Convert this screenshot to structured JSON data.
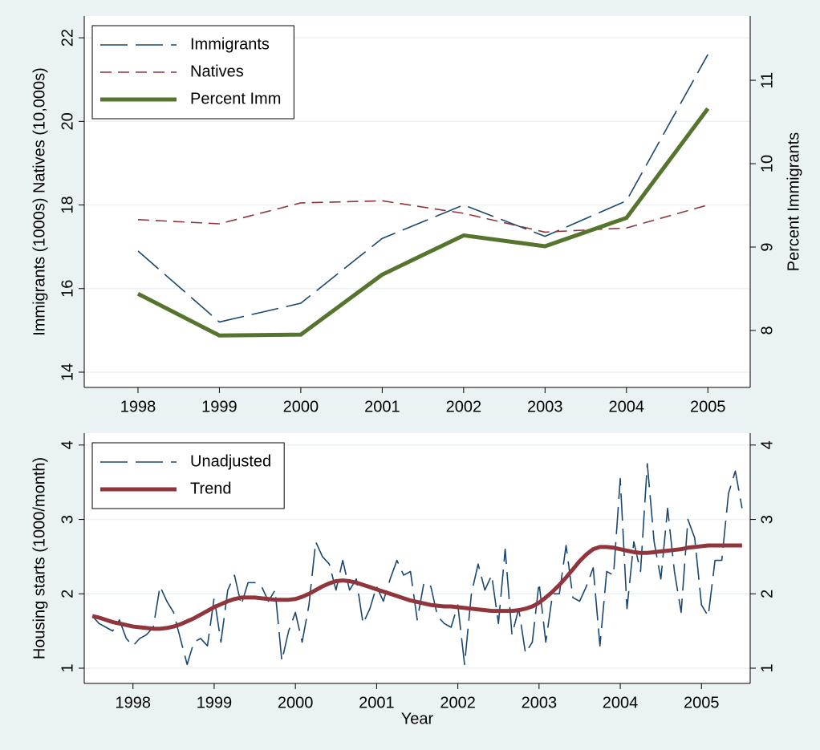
{
  "chart_data": [
    {
      "type": "line",
      "x": [
        1998,
        1999,
        2000,
        2001,
        2002,
        2003,
        2004,
        2005
      ],
      "xlim": [
        1997.34,
        2005.52
      ],
      "xticks": [
        1998,
        1999,
        2000,
        2001,
        2002,
        2003,
        2004,
        2005
      ],
      "ylim": [
        13.635,
        22.52
      ],
      "yticks": [
        14,
        16,
        18,
        20,
        22
      ],
      "y2lim": [
        7.317,
        11.77
      ],
      "y2ticks": [
        8,
        9,
        10,
        11
      ],
      "ylabel": "Immigrants (1000s) Natives (10,000s)",
      "y2label": "Percent Immigrants",
      "grid": true,
      "legend": "top-left",
      "series": [
        {
          "name": "Immigrants",
          "color": "#1a476f",
          "style": "long-dash",
          "values": [
            16.9,
            15.2,
            15.65,
            17.2,
            18.0,
            17.25,
            18.1,
            21.6
          ]
        },
        {
          "name": "Natives",
          "color": "#90353b",
          "style": "short-dash",
          "values": [
            17.65,
            17.55,
            18.05,
            18.1,
            17.8,
            17.35,
            17.45,
            18.0
          ]
        },
        {
          "name": "Percent Imm",
          "color": "#55752f",
          "style": "solid",
          "axis": "y2",
          "values": [
            8.44,
            7.94,
            7.95,
            8.67,
            9.14,
            9.01,
            9.35,
            10.66
          ]
        }
      ]
    },
    {
      "type": "line",
      "x": [
        1997.5,
        1997.583,
        1997.667,
        1997.75,
        1997.833,
        1997.917,
        1998,
        1998.083,
        1998.167,
        1998.25,
        1998.333,
        1998.417,
        1998.5,
        1998.583,
        1998.667,
        1998.75,
        1998.833,
        1998.917,
        1999,
        1999.083,
        1999.167,
        1999.25,
        1999.333,
        1999.417,
        1999.5,
        1999.583,
        1999.667,
        1999.75,
        1999.833,
        1999.917,
        2000,
        2000.083,
        2000.167,
        2000.25,
        2000.333,
        2000.417,
        2000.5,
        2000.583,
        2000.667,
        2000.75,
        2000.833,
        2000.917,
        2001,
        2001.083,
        2001.167,
        2001.25,
        2001.333,
        2001.417,
        2001.5,
        2001.583,
        2001.667,
        2001.75,
        2001.833,
        2001.917,
        2002,
        2002.083,
        2002.167,
        2002.25,
        2002.333,
        2002.417,
        2002.5,
        2002.583,
        2002.667,
        2002.75,
        2002.833,
        2002.917,
        2003,
        2003.083,
        2003.167,
        2003.25,
        2003.333,
        2003.417,
        2003.5,
        2003.583,
        2003.667,
        2003.75,
        2003.833,
        2003.917,
        2004,
        2004.083,
        2004.167,
        2004.25,
        2004.333,
        2004.417,
        2004.5,
        2004.583,
        2004.667,
        2004.75,
        2004.833,
        2004.917,
        2005,
        2005.083,
        2005.167,
        2005.25,
        2005.333,
        2005.417,
        2005.5
      ],
      "xlim": [
        1997.4,
        2005.6
      ],
      "xticks": [
        1998,
        1999,
        2000,
        2001,
        2002,
        2003,
        2004,
        2005
      ],
      "xlabel": "Year",
      "ylim": [
        0.795,
        4.16
      ],
      "yticks": [
        1,
        2,
        3,
        4
      ],
      "y2lim": [
        0.795,
        4.16
      ],
      "y2ticks": [
        1,
        2,
        3,
        4
      ],
      "ylabel": "Housing starts (1000/month)",
      "grid": true,
      "legend": "top-left",
      "series": [
        {
          "name": "Unadjusted",
          "color": "#1a476f",
          "style": "long-dash",
          "values": [
            1.7,
            1.6,
            1.55,
            1.5,
            1.65,
            1.4,
            1.3,
            1.4,
            1.45,
            1.55,
            2.1,
            1.9,
            1.75,
            1.4,
            1.05,
            1.35,
            1.4,
            1.3,
            1.95,
            1.35,
            2.05,
            2.25,
            1.85,
            2.15,
            2.15,
            2.1,
            1.9,
            2.05,
            1.1,
            1.5,
            1.75,
            1.35,
            1.85,
            2.7,
            2.5,
            2.4,
            2.05,
            2.45,
            2.05,
            2.2,
            1.6,
            1.8,
            2.1,
            1.9,
            2.2,
            2.45,
            2.25,
            2.3,
            1.65,
            2.15,
            2.1,
            1.7,
            1.6,
            1.55,
            1.85,
            1.05,
            2.0,
            2.4,
            2.05,
            2.25,
            1.6,
            2.6,
            1.45,
            1.8,
            1.2,
            1.35,
            2.15,
            1.35,
            2.0,
            2.0,
            2.65,
            1.95,
            1.9,
            2.1,
            2.35,
            1.3,
            2.3,
            2.25,
            3.55,
            1.8,
            2.7,
            2.3,
            3.75,
            2.7,
            2.2,
            3.15,
            2.3,
            1.75,
            3.0,
            2.75,
            1.85,
            1.7,
            2.45,
            2.45,
            3.35,
            3.65,
            3.15
          ]
        },
        {
          "name": "Trend",
          "color": "#90353b",
          "style": "solid",
          "values": [
            1.7,
            1.68,
            1.65,
            1.62,
            1.6,
            1.58,
            1.56,
            1.55,
            1.54,
            1.53,
            1.53,
            1.54,
            1.56,
            1.59,
            1.63,
            1.67,
            1.72,
            1.77,
            1.82,
            1.86,
            1.9,
            1.93,
            1.95,
            1.95,
            1.95,
            1.94,
            1.93,
            1.92,
            1.92,
            1.92,
            1.93,
            1.96,
            2.0,
            2.05,
            2.1,
            2.14,
            2.17,
            2.18,
            2.17,
            2.15,
            2.12,
            2.09,
            2.06,
            2.03,
            2.0,
            1.97,
            1.94,
            1.91,
            1.89,
            1.87,
            1.85,
            1.84,
            1.83,
            1.83,
            1.82,
            1.81,
            1.8,
            1.79,
            1.78,
            1.77,
            1.77,
            1.77,
            1.77,
            1.78,
            1.8,
            1.83,
            1.88,
            1.95,
            2.03,
            2.12,
            2.22,
            2.33,
            2.44,
            2.53,
            2.6,
            2.63,
            2.63,
            2.62,
            2.6,
            2.58,
            2.56,
            2.55,
            2.55,
            2.56,
            2.57,
            2.58,
            2.59,
            2.6,
            2.62,
            2.63,
            2.64,
            2.65,
            2.65,
            2.65,
            2.65,
            2.65,
            2.65
          ]
        }
      ]
    }
  ]
}
